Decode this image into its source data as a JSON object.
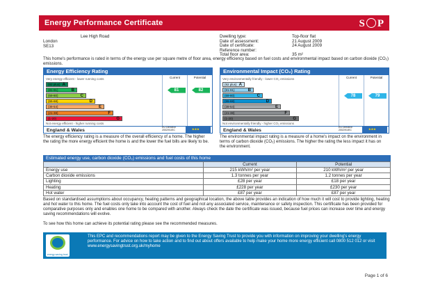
{
  "banner": {
    "title": "Energy Performance Certificate",
    "logo": "SAP"
  },
  "address": {
    "line1": "Lee High Road",
    "line2": "London",
    "line3": "SE13"
  },
  "property": [
    {
      "key": "Dwelling type:",
      "value": "Top-floor flat"
    },
    {
      "key": "Date of assessment:",
      "value": "21 August 2009"
    },
    {
      "key": "Date of certificate:",
      "value": "24 August 2009"
    },
    {
      "key": "Reference number:",
      "value": ""
    },
    {
      "key": "Total floor area:",
      "value": "35 m²"
    }
  ],
  "intro": "This home's performance is rated in terms of the energy use per square metre of floor area, energy efficiency based on fuel costs and environmental impact based on carbon dioxide (CO₂) emissions.",
  "efficiency": {
    "header": "Energy Efficiency Rating",
    "col_current": "Current",
    "col_potential": "Potential",
    "top_note": "Very energy efficient - lower running costs",
    "bottom_note": "Not energy efficient - higher running costs",
    "bands": [
      {
        "range": "(92 plus)",
        "letter": "A",
        "color": "#008054"
      },
      {
        "range": "(81-91)",
        "letter": "B",
        "color": "#19b459"
      },
      {
        "range": "(69-80)",
        "letter": "C",
        "color": "#8dce46"
      },
      {
        "range": "(55-68)",
        "letter": "D",
        "color": "#ffd500"
      },
      {
        "range": "(39-54)",
        "letter": "E",
        "color": "#fcaa65"
      },
      {
        "range": "(21-38)",
        "letter": "F",
        "color": "#ef8023"
      },
      {
        "range": "(1-20)",
        "letter": "G",
        "color": "#e9153b"
      }
    ],
    "current": "81",
    "potential": "82",
    "footer": "England & Wales",
    "eu": "EU Directive 2002/91/EC"
  },
  "environment": {
    "header": "Environmental Impact (CO₂) Rating",
    "col_current": "Current",
    "col_potential": "Potential",
    "top_note": "Very environmentally friendly - lower CO₂ emissions",
    "bottom_note": "Not environmentally friendly - higher CO₂ emissions",
    "bands": [
      {
        "range": "(92 plus)",
        "letter": "A",
        "color": "#cfe9f7"
      },
      {
        "range": "(81-91)",
        "letter": "B",
        "color": "#8fd0f0"
      },
      {
        "range": "(69-80)",
        "letter": "C",
        "color": "#2fb5e8"
      },
      {
        "range": "(55-68)",
        "letter": "D",
        "color": "#0a8fd0"
      },
      {
        "range": "(39-54)",
        "letter": "E",
        "color": "#a7a9ac"
      },
      {
        "range": "(21-38)",
        "letter": "F",
        "color": "#888b8e"
      },
      {
        "range": "(1-20)",
        "letter": "G",
        "color": "#6d6f71"
      }
    ],
    "current": "78",
    "potential": "79",
    "footer": "England & Wales",
    "eu": "EU Directive 2002/91/EC"
  },
  "desc_left": "The energy efficiency rating is a measure of the overall efficiency of a home. The higher the rating the more energy efficient the home is and the lower the fuel bills are likely to be.",
  "desc_right": "The environmental impact rating is a measure of a home's impact on the environment in terms of carbon dioxide (CO₂) emissions. The higher the rating the less impact it has on the environment.",
  "costs": {
    "header": "Estimated energy use, carbon dioxide (CO₂) emissions and fuel costs of this home",
    "col_current": "Current",
    "col_potential": "Potential",
    "rows": [
      {
        "label": "Energy use",
        "current": "215 kWh/m² per year",
        "potential": "210 kWh/m² per year"
      },
      {
        "label": "Carbon dioxide emissions",
        "current": "1.3 tonnes per year",
        "potential": "1.2 tonnes per year"
      },
      {
        "label": "Lighting",
        "current": "£28 per year",
        "potential": "£18 per year"
      },
      {
        "label": "Heating",
        "current": "£228 per year",
        "potential": "£230 per year"
      },
      {
        "label": "Hot water",
        "current": "£87 per year",
        "potential": "£87 per year"
      }
    ]
  },
  "para1": "Based on standardised assumptions about occupancy, heating patterns and geographical location, the above table provides an indication of how much it will cost to provide lighting, heating and hot water to this home. The fuel costs only take into account the cost of fuel and not any associated service, maintenance or safety inspection. This certificate has been provided for comparative purposes only and enables one home to be compared with another. Always check the date the certificate was issued, because fuel prices can increase over time and energy saving recommendations will evolve.",
  "para2": "To see how this home can achieve its potential rating please see the recommended measures.",
  "est": {
    "logo_text": "energy saving trust",
    "text": "This EPC and recommendations report may be given to the Energy Saving Trust to provide you with information on improving your dwelling's energy performance. For advice on how to take action and to find out about offers available to help make your home more energy efficient call 0800 512 012 or visit www.energysavingtrust.org.uk/myhome"
  },
  "pager": "Page 1 of 6"
}
